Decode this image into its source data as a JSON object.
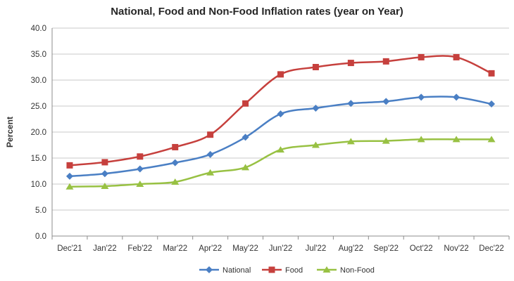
{
  "chart_data": {
    "type": "line",
    "title": "National, Food and Non-Food Inflation rates (year on Year)",
    "xlabel": "",
    "ylabel": "Percent",
    "ylim": [
      0,
      40
    ],
    "yticks": [
      "0.0",
      "5.0",
      "10.0",
      "15.0",
      "20.0",
      "25.0",
      "30.0",
      "35.0",
      "40.0"
    ],
    "grid": true,
    "legend_position": "bottom",
    "categories": [
      "Dec'21",
      "Jan'22",
      "Feb'22",
      "Mar'22",
      "Apr'22",
      "May'22",
      "Jun'22",
      "Jul'22",
      "Aug'22",
      "Sep'22",
      "Oct'22",
      "Nov'22",
      "Dec'22"
    ],
    "series": [
      {
        "name": "National",
        "color": "#4a7fc4",
        "marker": "diamond",
        "values": [
          11.5,
          12.0,
          12.9,
          14.1,
          15.7,
          19.0,
          23.5,
          24.6,
          25.5,
          25.9,
          26.7,
          26.7,
          25.4
        ]
      },
      {
        "name": "Food",
        "color": "#c6403d",
        "marker": "square",
        "values": [
          13.6,
          14.2,
          15.3,
          17.1,
          19.5,
          25.5,
          31.1,
          32.5,
          33.3,
          33.6,
          34.4,
          34.4,
          31.3
        ]
      },
      {
        "name": "Non-Food",
        "color": "#98c143",
        "marker": "triangle",
        "values": [
          9.5,
          9.6,
          10.0,
          10.4,
          12.2,
          13.2,
          16.6,
          17.5,
          18.2,
          18.3,
          18.6,
          18.6,
          18.6
        ]
      }
    ]
  }
}
